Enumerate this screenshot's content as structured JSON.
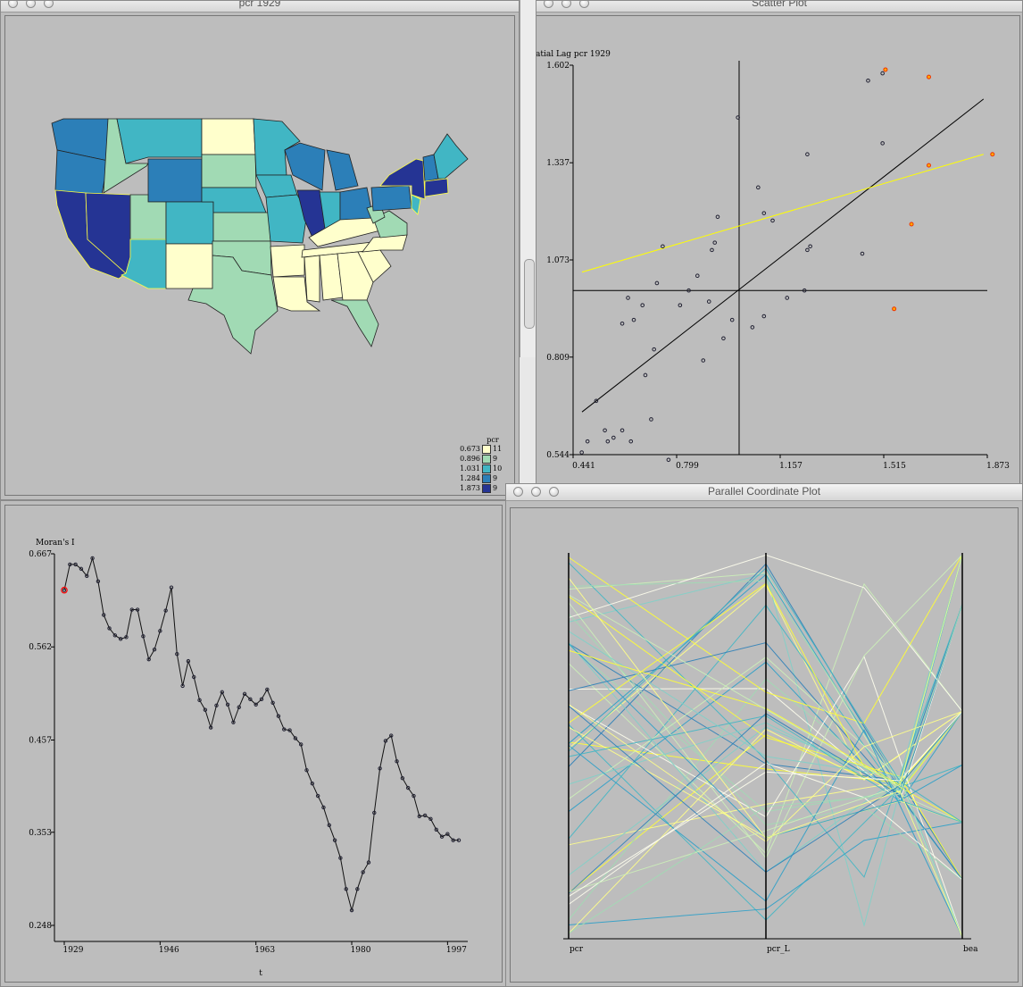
{
  "windows": {
    "map": {
      "title": "pcr 1929"
    },
    "scatter": {
      "title": "Scatter Plot"
    },
    "timeseries": {
      "title": ""
    },
    "pcp": {
      "title": "Parallel Coordinate Plot"
    }
  },
  "legend": {
    "title": "pcr",
    "items": [
      {
        "value": "0.673",
        "count": "11",
        "color": "#ffffcc"
      },
      {
        "value": "0.896",
        "count": "9",
        "color": "#a1dab4"
      },
      {
        "value": "1.031",
        "count": "10",
        "color": "#41b6c4"
      },
      {
        "value": "1.284",
        "count": "9",
        "color": "#2c7fb8"
      },
      {
        "value": "1.873",
        "count": "9",
        "color": "#253494"
      }
    ]
  },
  "chart_data": [
    {
      "type": "scatter",
      "ylabel": "atial Lag pcr 1929",
      "xticks": [
        "0.441",
        "0.799",
        "1.157",
        "1.515",
        "1.873"
      ],
      "yticks": [
        "1.602",
        "1.337",
        "1.073",
        "0.809",
        "0.544"
      ],
      "xlim": [
        0.441,
        1.873
      ],
      "ylim": [
        0.544,
        1.602
      ],
      "points": [
        [
          0.44,
          0.55
        ],
        [
          0.46,
          0.58
        ],
        [
          0.49,
          0.69
        ],
        [
          0.52,
          0.61
        ],
        [
          0.53,
          0.58
        ],
        [
          0.55,
          0.59
        ],
        [
          0.58,
          0.61
        ],
        [
          0.61,
          0.58
        ],
        [
          0.58,
          0.9
        ],
        [
          0.62,
          0.91
        ],
        [
          0.6,
          0.97
        ],
        [
          0.65,
          0.95
        ],
        [
          0.66,
          0.76
        ],
        [
          0.69,
          0.83
        ],
        [
          0.7,
          1.01
        ],
        [
          0.68,
          0.64
        ],
        [
          0.74,
          0.53
        ],
        [
          0.72,
          1.11
        ],
        [
          0.78,
          0.95
        ],
        [
          0.81,
          0.99
        ],
        [
          0.84,
          1.03
        ],
        [
          0.86,
          0.8
        ],
        [
          0.88,
          0.96
        ],
        [
          0.89,
          1.1
        ],
        [
          0.9,
          1.12
        ],
        [
          0.91,
          1.19
        ],
        [
          0.93,
          0.86
        ],
        [
          0.96,
          0.91
        ],
        [
          0.98,
          1.46
        ],
        [
          1.03,
          0.89
        ],
        [
          1.05,
          1.27
        ],
        [
          1.07,
          0.92
        ],
        [
          1.1,
          1.18
        ],
        [
          1.07,
          1.2
        ],
        [
          1.15,
          0.97
        ],
        [
          1.21,
          0.99
        ],
        [
          1.22,
          1.1
        ],
        [
          1.23,
          1.11
        ],
        [
          1.22,
          1.36
        ],
        [
          1.41,
          1.09
        ],
        [
          1.43,
          1.56
        ],
        [
          1.48,
          1.39
        ],
        [
          1.48,
          1.58
        ]
      ],
      "highlighted_points": [
        [
          1.49,
          1.59
        ],
        [
          1.64,
          1.57
        ],
        [
          1.64,
          1.33
        ],
        [
          1.58,
          1.17
        ],
        [
          1.52,
          0.94
        ],
        [
          1.86,
          1.36
        ]
      ],
      "fit_lines": [
        {
          "color": "#000000",
          "from": [
            0.441,
            0.66
          ],
          "to": [
            1.86,
            1.51
          ]
        },
        {
          "color": "#ffff00",
          "from": [
            0.441,
            1.04
          ],
          "to": [
            1.86,
            1.36
          ]
        }
      ]
    },
    {
      "type": "line",
      "ylabel": "Moran's I",
      "xlabel": "t",
      "xticks": [
        "1929",
        "1946",
        "1963",
        "1980",
        "1997"
      ],
      "yticks": [
        "0.667",
        "0.562",
        "0.457",
        "0.353",
        "0.248"
      ],
      "ylim": [
        0.248,
        0.667
      ],
      "x": [
        1929,
        1930,
        1931,
        1932,
        1933,
        1934,
        1935,
        1936,
        1937,
        1938,
        1939,
        1940,
        1941,
        1942,
        1943,
        1944,
        1945,
        1946,
        1947,
        1948,
        1949,
        1950,
        1951,
        1952,
        1953,
        1954,
        1955,
        1956,
        1957,
        1958,
        1959,
        1960,
        1961,
        1962,
        1963,
        1964,
        1965,
        1966,
        1967,
        1968,
        1969,
        1970,
        1971,
        1972,
        1973,
        1974,
        1975,
        1976,
        1977,
        1978,
        1979,
        1980,
        1981,
        1982,
        1983,
        1984,
        1985,
        1986,
        1987,
        1988,
        1989,
        1990,
        1991,
        1992,
        1993,
        1994,
        1995,
        1996,
        1997,
        1998,
        1999
      ],
      "values": [
        0.626,
        0.655,
        0.655,
        0.65,
        0.642,
        0.662,
        0.636,
        0.598,
        0.583,
        0.575,
        0.571,
        0.573,
        0.604,
        0.604,
        0.574,
        0.548,
        0.559,
        0.58,
        0.603,
        0.629,
        0.554,
        0.518,
        0.546,
        0.528,
        0.502,
        0.491,
        0.471,
        0.496,
        0.511,
        0.497,
        0.477,
        0.494,
        0.509,
        0.503,
        0.497,
        0.503,
        0.514,
        0.499,
        0.484,
        0.469,
        0.468,
        0.459,
        0.452,
        0.423,
        0.408,
        0.394,
        0.381,
        0.361,
        0.344,
        0.324,
        0.289,
        0.265,
        0.289,
        0.308,
        0.319,
        0.375,
        0.425,
        0.456,
        0.462,
        0.433,
        0.414,
        0.403,
        0.394,
        0.371,
        0.372,
        0.368,
        0.356,
        0.348,
        0.351,
        0.344,
        0.344
      ],
      "marker": {
        "year": 1929,
        "value": 0.626,
        "color": "#ff0000"
      }
    },
    {
      "type": "parallel",
      "axes": [
        "pcr",
        "pcr_L",
        "bea"
      ]
    }
  ]
}
